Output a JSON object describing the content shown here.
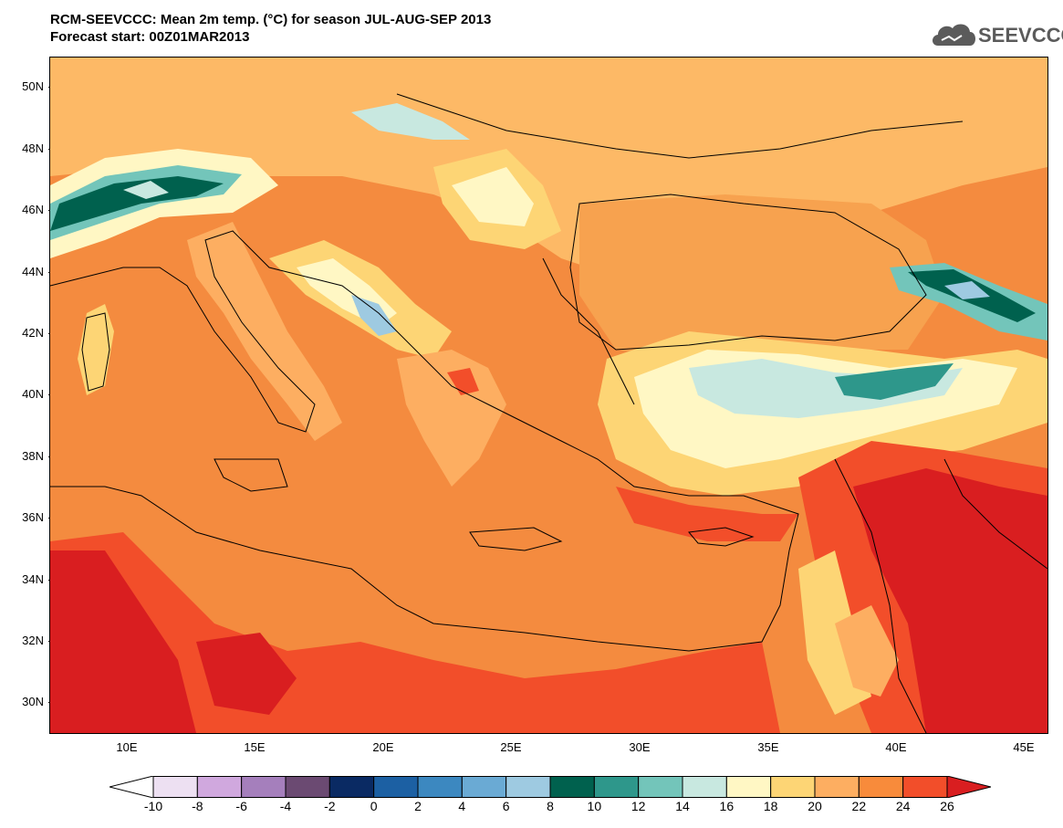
{
  "header": {
    "title_line1": "RCM-SEEVCCC: Mean 2m temp. (°C) for season JUL-AUG-SEP 2013",
    "title_line2": "Forecast start: 00Z01MAR2013",
    "logo_text": "SEEVCCC"
  },
  "map": {
    "lat_labels": [
      "50N",
      "48N",
      "46N",
      "44N",
      "42N",
      "40N",
      "38N",
      "36N",
      "34N",
      "32N",
      "30N"
    ],
    "lon_labels": [
      "10E",
      "15E",
      "20E",
      "25E",
      "30E",
      "35E",
      "40E",
      "45E"
    ],
    "extent": {
      "lon_min": 7,
      "lon_max": 45.8,
      "lat_min": 29,
      "lat_max": 51
    }
  },
  "colorbar": {
    "labels": [
      "-10",
      "-8",
      "-6",
      "-4",
      "-2",
      "0",
      "2",
      "4",
      "6",
      "8",
      "10",
      "12",
      "14",
      "16",
      "18",
      "20",
      "22",
      "24",
      "26"
    ],
    "colors": [
      "#ffffff",
      "#ede0f2",
      "#d0a8de",
      "#a57fbc",
      "#6b4a72",
      "#0a2a63",
      "#1c60a3",
      "#3c88c0",
      "#6aaad4",
      "#9ecae1",
      "#00614e",
      "#2e978b",
      "#73c5ba",
      "#c8e8e0",
      "#fff7c4",
      "#fdd575",
      "#fdae61",
      "#f88b3b",
      "#f24e2a",
      "#d91e20"
    ]
  }
}
